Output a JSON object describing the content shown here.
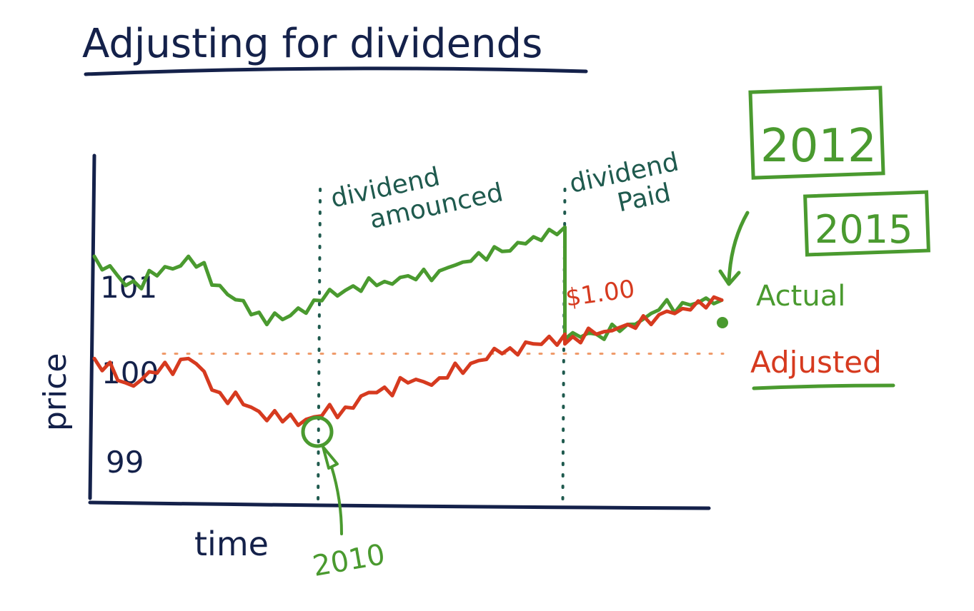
{
  "title": "Adjusting for dividends",
  "colors": {
    "ink": "#14214a",
    "annotation": "#1f5a4e",
    "actual": "#4a9a2f",
    "adjusted": "#d63a1f",
    "reference": "#ef9a6a"
  },
  "chart_data": {
    "type": "line",
    "title": "Adjusting for dividends",
    "xlabel": "time",
    "ylabel": "price",
    "x": [
      0,
      0.05,
      0.1,
      0.15,
      0.2,
      0.25,
      0.3,
      0.35,
      0.4,
      0.45,
      0.5,
      0.55,
      0.6,
      0.65,
      0.7,
      0.75,
      0.75,
      0.8,
      0.85,
      0.9,
      0.95,
      1.0
    ],
    "ylim": [
      98.5,
      101.8
    ],
    "ytick_labels": [
      "101",
      "100",
      "99"
    ],
    "series": [
      {
        "name": "Actual",
        "values": [
          101.0,
          100.7,
          100.8,
          101.0,
          100.7,
          100.4,
          100.35,
          100.55,
          100.65,
          100.7,
          100.8,
          100.85,
          100.95,
          101.05,
          101.2,
          101.3,
          100.15,
          100.2,
          100.3,
          100.45,
          100.5,
          100.55
        ]
      },
      {
        "name": "Adjusted",
        "values": [
          99.95,
          99.7,
          99.8,
          99.95,
          99.6,
          99.45,
          99.3,
          99.35,
          99.45,
          99.6,
          99.7,
          99.75,
          99.9,
          100.0,
          100.1,
          100.2,
          100.1,
          100.2,
          100.3,
          100.4,
          100.45,
          100.55
        ]
      }
    ],
    "reference_line": {
      "label": "100",
      "value": 100.0
    },
    "events": [
      {
        "label": "dividend amounced",
        "x": 0.36
      },
      {
        "label": "dividend Paid",
        "x": 0.75
      }
    ],
    "annotations": {
      "dividend_amount": "$1.00",
      "marker_year": "2010",
      "boxed_years": [
        "2012",
        "2015"
      ]
    }
  }
}
